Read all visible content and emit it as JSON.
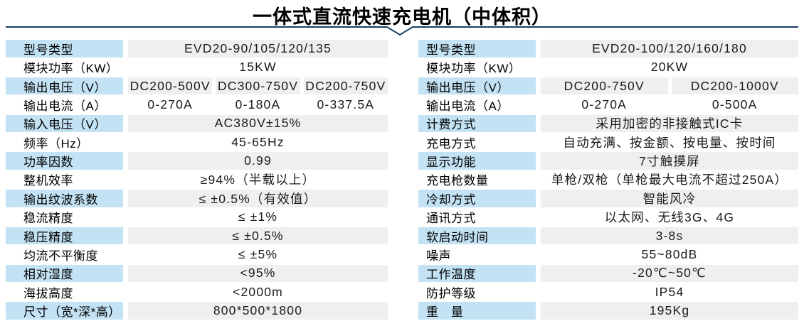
{
  "title": "一体式直流快速充电机（中体积）",
  "colors": {
    "label_bg": "#c3e3f5",
    "value_bg": "#efefef",
    "rule": "#1c3c64",
    "title_text": "#000000"
  },
  "tables": {
    "left": {
      "rows": [
        {
          "label": "型号类型",
          "values": [
            "EVD20-90/105/120/135"
          ]
        },
        {
          "label": "模块功率（KW）",
          "values": [
            "15KW"
          ]
        },
        {
          "label": "输出电压（V）",
          "values": [
            "DC200-500V",
            "DC300-750V",
            "DC200-750V"
          ]
        },
        {
          "label": "输出电流（A）",
          "values": [
            "0-270A",
            "0-180A",
            "0-337.5A"
          ]
        },
        {
          "label": "输入电压（V）",
          "values": [
            "AC380V±15%"
          ]
        },
        {
          "label": "频率（Hz）",
          "values": [
            "45-65Hz"
          ]
        },
        {
          "label": "功率因数",
          "values": [
            "0.99"
          ]
        },
        {
          "label": "整机效率",
          "values": [
            "≥94%（半载以上）"
          ]
        },
        {
          "label": "输出纹波系数",
          "values": [
            "≤ ±0.5%（有效值）"
          ]
        },
        {
          "label": "稳流精度",
          "values": [
            "≤ ±1%"
          ]
        },
        {
          "label": "稳压精度",
          "values": [
            "≤ ±0.5%"
          ]
        },
        {
          "label": "均流不平衡度",
          "values": [
            "≤ ±5%"
          ]
        },
        {
          "label": "相对湿度",
          "values": [
            "<95%"
          ]
        },
        {
          "label": "海拔高度",
          "values": [
            "<2000m"
          ]
        },
        {
          "label": "尺寸（宽*深*高）",
          "values": [
            "800*500*1800"
          ]
        }
      ]
    },
    "right": {
      "rows": [
        {
          "label": "型号类型",
          "values": [
            "EVD20-100/120/160/180"
          ]
        },
        {
          "label": "模块功率（KW）",
          "values": [
            "20KW"
          ]
        },
        {
          "label": "输出电压（V）",
          "values": [
            "DC200-750V",
            "DC200-1000V"
          ]
        },
        {
          "label": "输出电流（A）",
          "values": [
            "0-270A",
            "0-500A"
          ]
        },
        {
          "label": "计费方式",
          "values": [
            "采用加密的非接触式IC卡"
          ]
        },
        {
          "label": "充电方式",
          "values": [
            "自动充满、按金额、按电量、按时间"
          ]
        },
        {
          "label": "显示功能",
          "values": [
            "7寸触摸屏"
          ]
        },
        {
          "label": "充电枪数量",
          "values": [
            "单枪/双枪（单枪最大电流不超过250A）"
          ]
        },
        {
          "label": "冷却方式",
          "values": [
            "智能风冷"
          ]
        },
        {
          "label": "通讯方式",
          "values": [
            "以太网、无线3G、4G"
          ]
        },
        {
          "label": "软启动时间",
          "values": [
            "3-8s"
          ]
        },
        {
          "label": "噪声",
          "values": [
            "55~80dB"
          ]
        },
        {
          "label": "工作温度",
          "values": [
            "-20℃~50℃"
          ]
        },
        {
          "label": "防护等级",
          "values": [
            "IP54"
          ]
        },
        {
          "label": "重　量",
          "values": [
            "195Kg"
          ]
        }
      ]
    }
  }
}
